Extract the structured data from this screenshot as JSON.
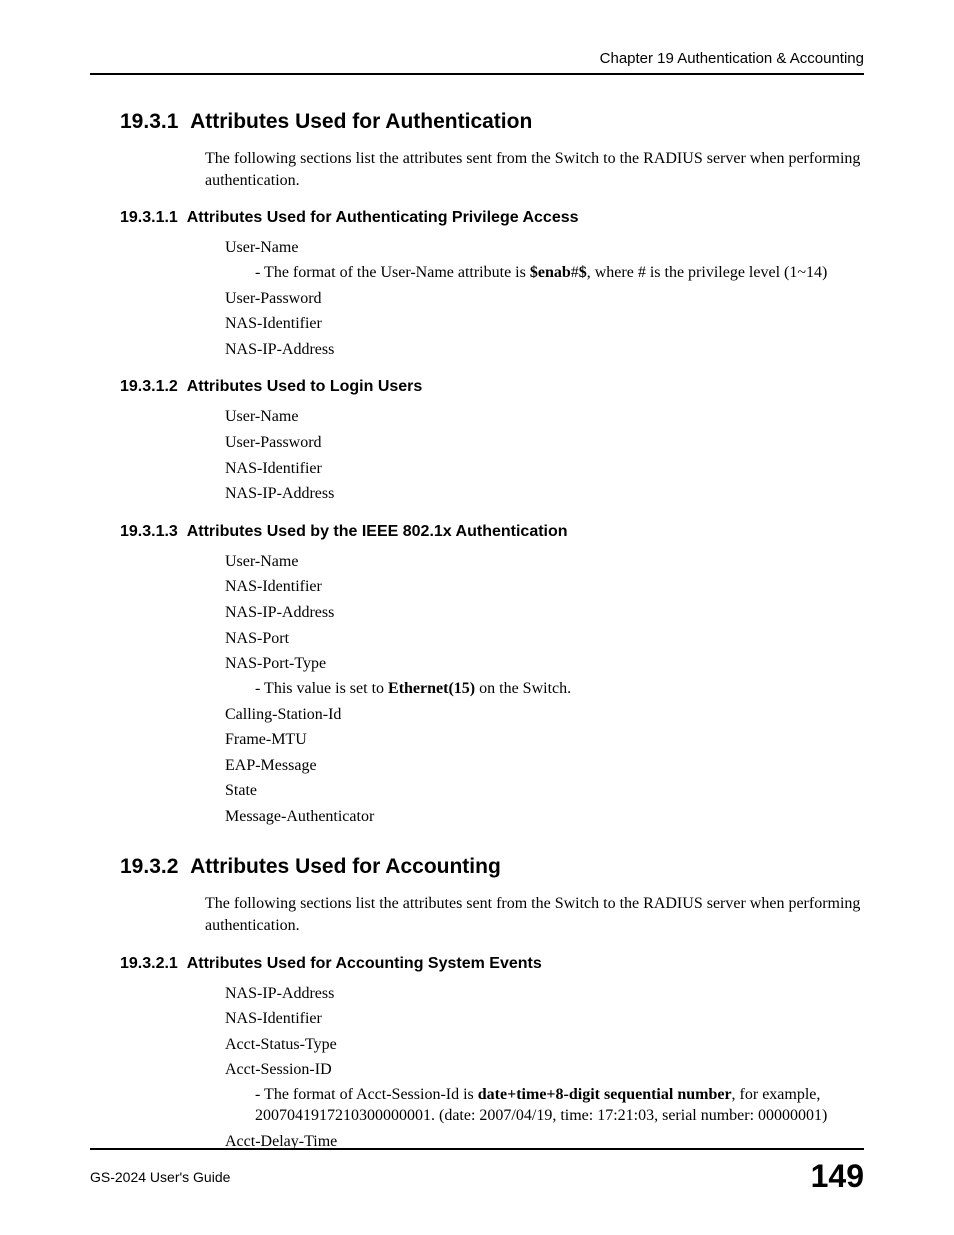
{
  "header": {
    "chapter": "Chapter 19 Authentication & Accounting"
  },
  "sec1": {
    "num": "19.3.1",
    "title": "Attributes Used for Authentication",
    "intro": "The following sections list the attributes sent from the Switch to the RADIUS server when performing authentication.",
    "sub1": {
      "num": "19.3.1.1",
      "title": "Attributes Used for Authenticating Privilege Access",
      "a1": "User-Name",
      "note1_pre": "- The format of the User-Name attribute is ",
      "note1_bold": "$enab",
      "note1_mid": "#",
      "note1_bold2": "$",
      "note1_post": ", where # is the privilege level (1~14)",
      "a2": "User-Password",
      "a3": "NAS-Identifier",
      "a4": "NAS-IP-Address"
    },
    "sub2": {
      "num": "19.3.1.2",
      "title": "Attributes Used to Login Users",
      "a1": "User-Name",
      "a2": "User-Password",
      "a3": "NAS-Identifier",
      "a4": "NAS-IP-Address"
    },
    "sub3": {
      "num": "19.3.1.3",
      "title": "Attributes Used by the IEEE 802.1x Authentication",
      "a1": "User-Name",
      "a2": "NAS-Identifier",
      "a3": "NAS-IP-Address",
      "a4": "NAS-Port",
      "a5": "NAS-Port-Type",
      "note5_pre": "- This value is set to ",
      "note5_bold": "Ethernet(15)",
      "note5_post": " on the Switch.",
      "a6": "Calling-Station-Id",
      "a7": "Frame-MTU",
      "a8": "EAP-Message",
      "a9": "State",
      "a10": "Message-Authenticator"
    }
  },
  "sec2": {
    "num": "19.3.2",
    "title": "Attributes Used for Accounting",
    "intro": "The following sections list the attributes sent from the Switch to the RADIUS server when performing authentication.",
    "sub1": {
      "num": "19.3.2.1",
      "title": "Attributes Used for Accounting System Events",
      "a1": "NAS-IP-Address",
      "a2": "NAS-Identifier",
      "a3": "Acct-Status-Type",
      "a4": "Acct-Session-ID",
      "note4_pre": "- The format of Acct-Session-Id is ",
      "note4_bold": "date+time+8-digit sequential number",
      "note4_post": ", for example, 2007041917210300000001. (date: 2007/04/19, time: 17:21:03, serial number: 00000001)",
      "a5": "Acct-Delay-Time"
    }
  },
  "footer": {
    "guide": "GS-2024 User's Guide",
    "page": "149"
  }
}
